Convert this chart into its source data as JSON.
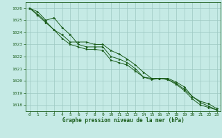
{
  "title": "Graphe pression niveau de la mer (hPa)",
  "background_color": "#c5eae5",
  "plot_bg_color": "#c5eae5",
  "grid_color": "#9dc8c2",
  "line_color": "#1a5c1a",
  "label_color": "#1a5c1a",
  "xlim": [
    -0.5,
    23.5
  ],
  "ylim": [
    1017.5,
    1026.5
  ],
  "xticks": [
    0,
    1,
    2,
    3,
    4,
    5,
    6,
    7,
    8,
    9,
    10,
    11,
    12,
    13,
    14,
    15,
    16,
    17,
    18,
    19,
    20,
    21,
    22,
    23
  ],
  "yticks": [
    1018,
    1019,
    1020,
    1021,
    1022,
    1023,
    1024,
    1025,
    1026
  ],
  "series": [
    [
      1026.0,
      1025.7,
      1025.0,
      1025.2,
      1024.4,
      1023.8,
      1023.0,
      1022.8,
      1022.8,
      1022.8,
      1022.0,
      1021.8,
      1021.5,
      1021.0,
      1020.3,
      1020.2,
      1020.2,
      1020.2,
      1019.9,
      1019.5,
      1018.7,
      1018.3,
      1018.1,
      1017.7
    ],
    [
      1026.0,
      1025.5,
      1024.9,
      1024.2,
      1023.5,
      1023.0,
      1022.8,
      1022.6,
      1022.6,
      1022.5,
      1021.7,
      1021.5,
      1021.3,
      1020.8,
      1020.3,
      1020.1,
      1020.2,
      1020.1,
      1019.7,
      1019.2,
      1018.5,
      1018.0,
      1017.8,
      1017.6
    ],
    [
      1026.0,
      1025.4,
      1024.8,
      1024.2,
      1023.8,
      1023.2,
      1023.2,
      1023.2,
      1023.0,
      1023.0,
      1022.5,
      1022.2,
      1021.8,
      1021.3,
      1020.7,
      1020.2,
      1020.2,
      1020.1,
      1019.8,
      1019.3,
      1018.7,
      1018.2,
      1017.9,
      1017.6
    ]
  ]
}
